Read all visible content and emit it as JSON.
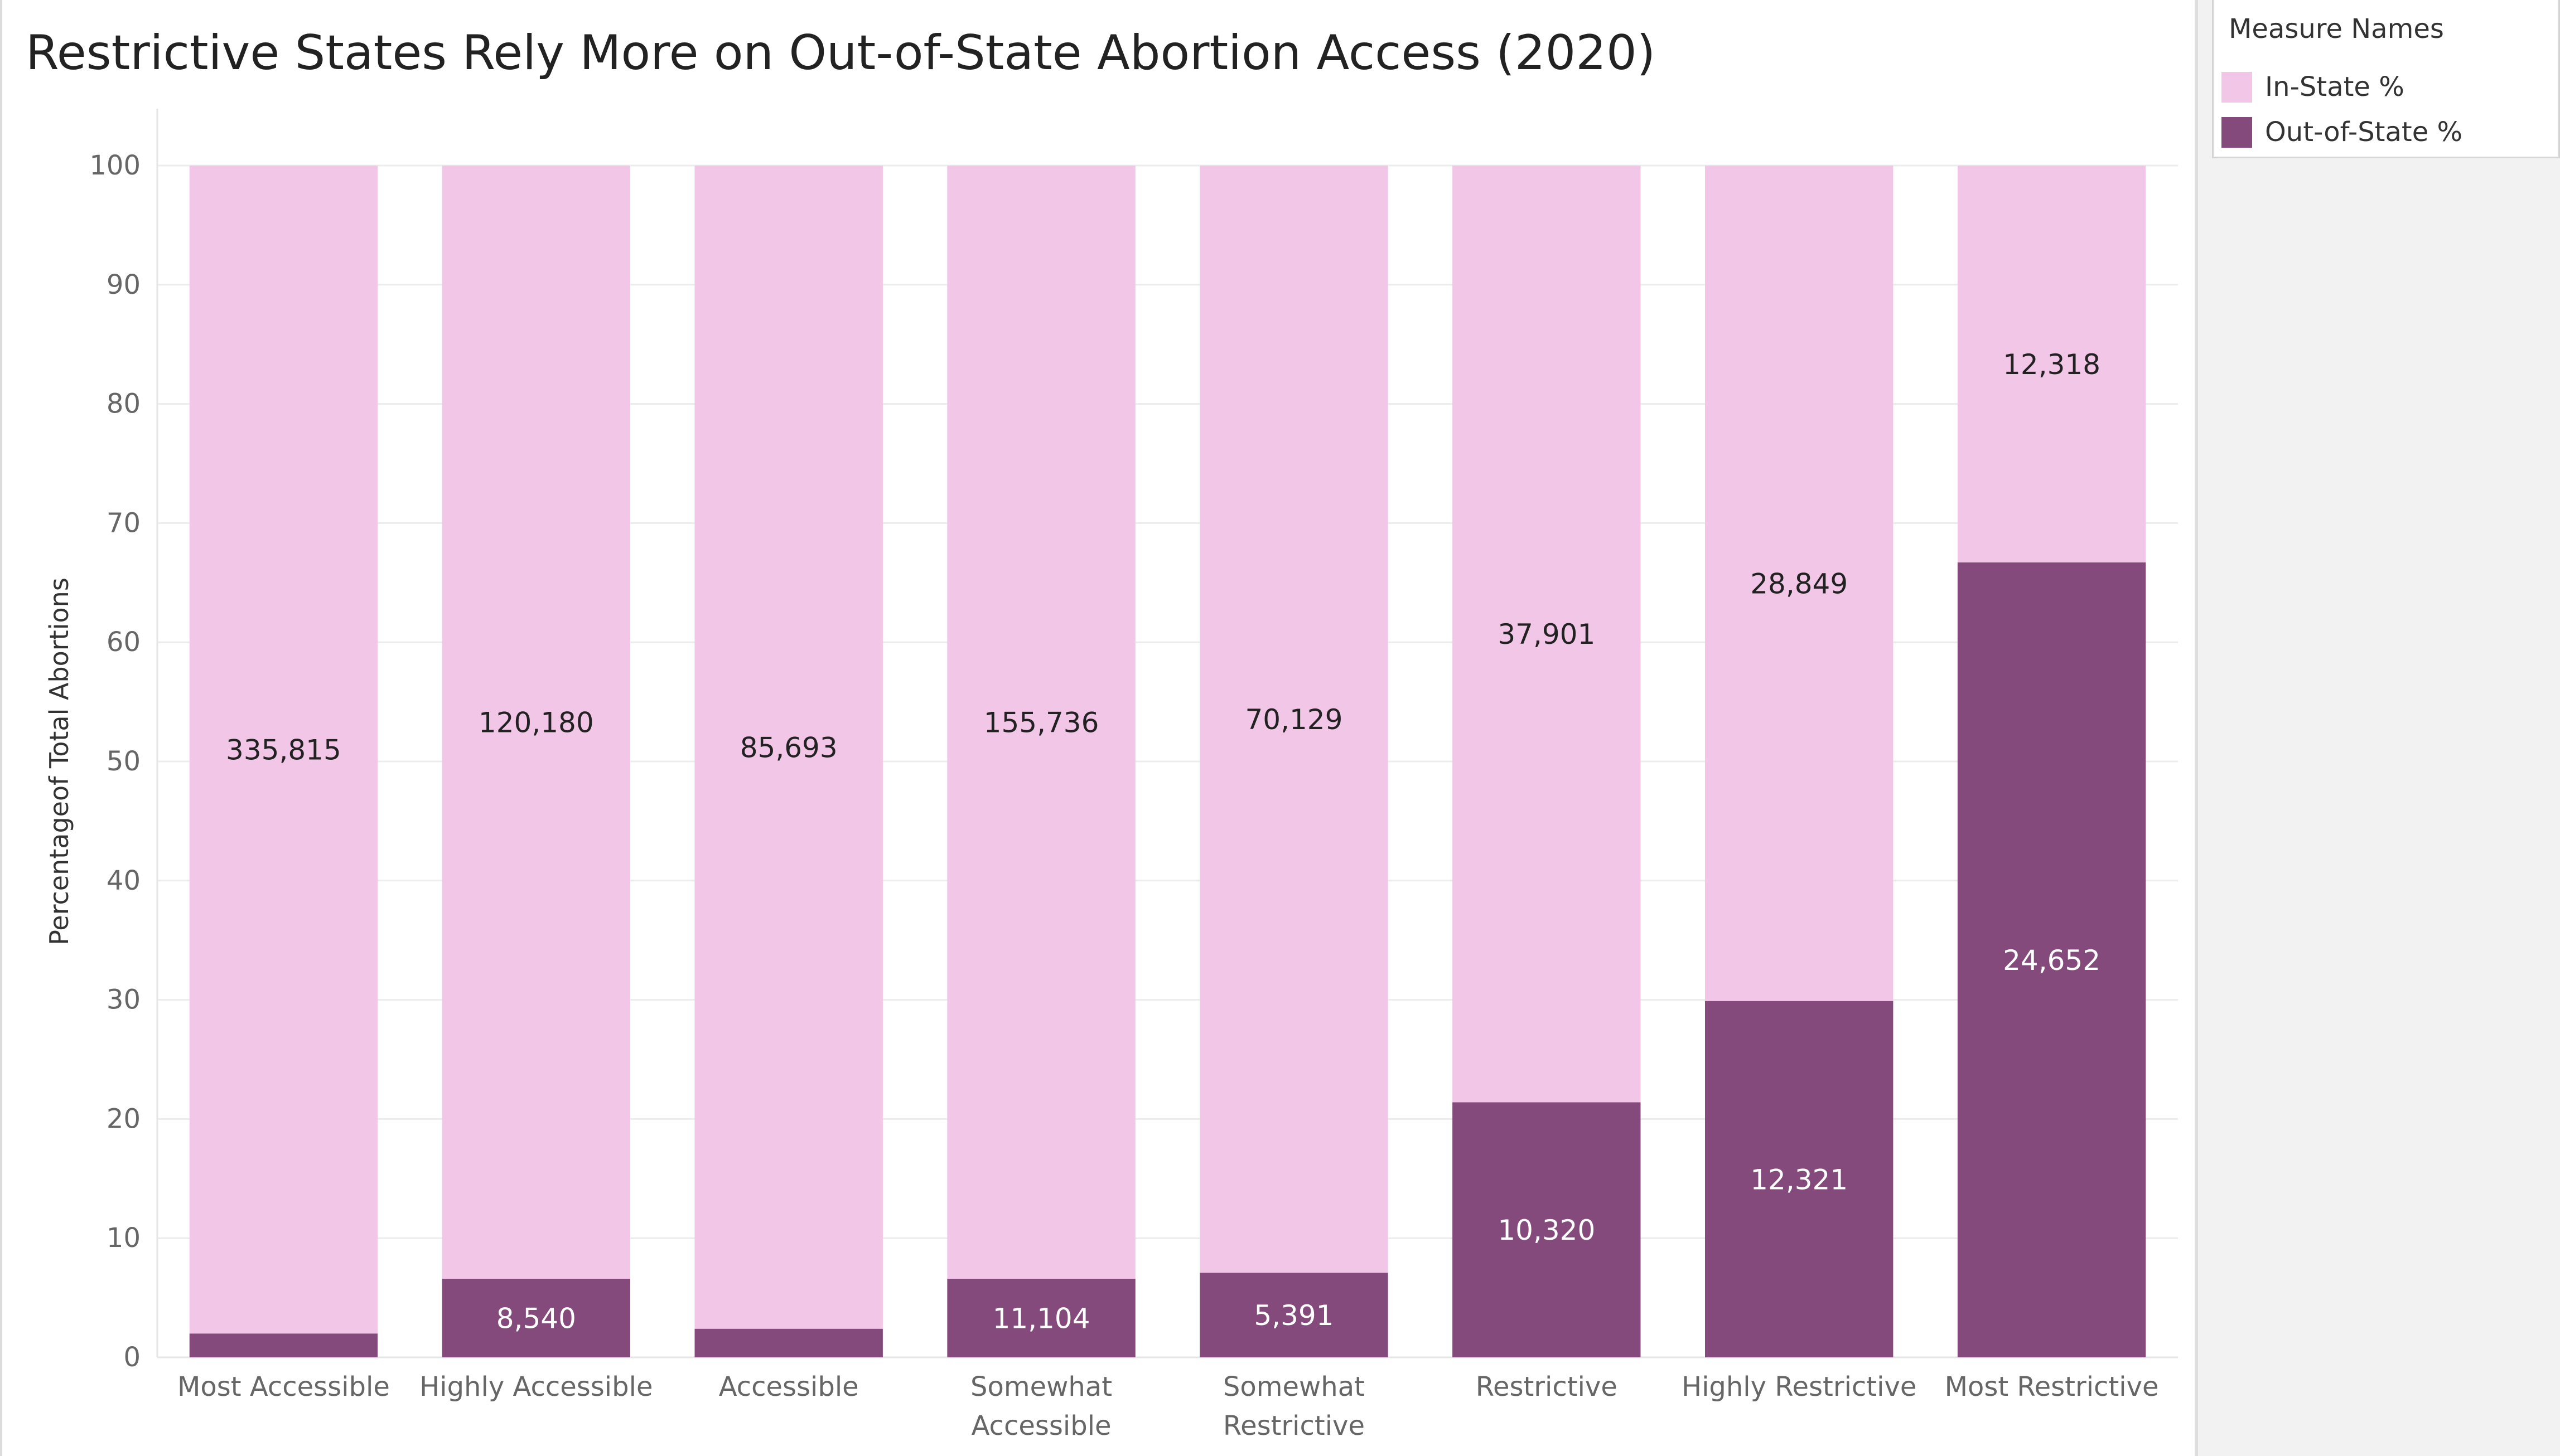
{
  "title": "Restrictive States Rely More on Out-of-State Abortion Access (2020)",
  "legend": {
    "title": "Measure Names",
    "items": [
      {
        "label": "In-State %",
        "color": "#f2c6e6"
      },
      {
        "label": "Out-of-State %",
        "color": "#834a7b"
      }
    ]
  },
  "chart_data": {
    "type": "bar",
    "stacked": true,
    "title": "Restrictive States Rely More on Out-of-State Abortion Access (2020)",
    "xlabel": "",
    "ylabel": "Percentageof Total Abortions",
    "ylim": [
      0,
      100
    ],
    "yticks": [
      0,
      10,
      20,
      30,
      40,
      50,
      60,
      70,
      80,
      90,
      100
    ],
    "grid": true,
    "legend_position": "top-right",
    "categories": [
      [
        "Most Accessible"
      ],
      [
        "Highly Accessible"
      ],
      [
        "Accessible"
      ],
      [
        "Somewhat",
        "Accessible"
      ],
      [
        "Somewhat",
        "Restrictive"
      ],
      [
        "Restrictive"
      ],
      [
        "Highly Restrictive"
      ],
      [
        "Most Restrictive"
      ]
    ],
    "series": [
      {
        "name": "Out-of-State %",
        "color": "#834a7b",
        "values": [
          2.0,
          6.6,
          2.4,
          6.6,
          7.1,
          21.4,
          29.9,
          66.7
        ],
        "labels": [
          "",
          "8,540",
          "",
          "11,104",
          "5,391",
          "10,320",
          "12,321",
          "24,652"
        ]
      },
      {
        "name": "In-State %",
        "color": "#f2c6e6",
        "values": [
          98.0,
          93.4,
          97.6,
          93.4,
          92.9,
          78.6,
          70.1,
          33.3
        ],
        "labels": [
          "335,815",
          "120,180",
          "85,693",
          "155,736",
          "70,129",
          "37,901",
          "28,849",
          "12,318"
        ]
      }
    ]
  }
}
